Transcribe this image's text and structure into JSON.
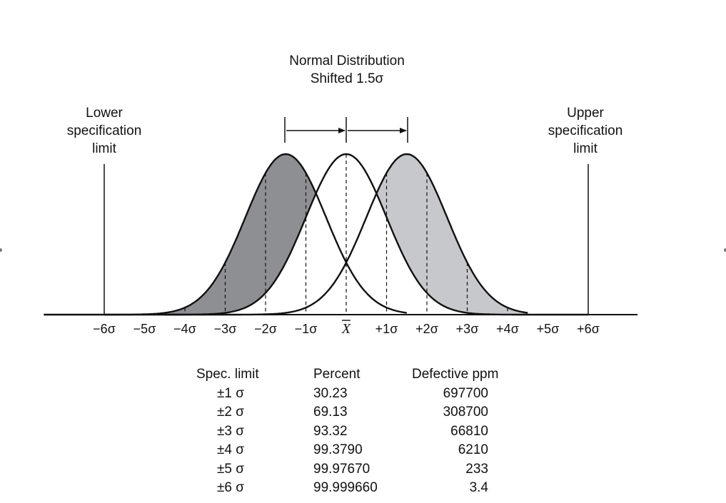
{
  "title_line1": "Normal Distribution",
  "title_line2": "Shifted 1.5σ",
  "lower_limit_lines": [
    "Lower",
    "specification",
    "limit"
  ],
  "upper_limit_lines": [
    "Upper",
    "specification",
    "limit"
  ],
  "axis_ticks": [
    "−6σ",
    "−5σ",
    "−4σ",
    "−3σ",
    "−2σ",
    "−1σ",
    "X",
    "+1σ",
    "+2σ",
    "+3σ",
    "+4σ",
    "+5σ",
    "+6σ"
  ],
  "colors": {
    "dark_fill": "#8e8f93",
    "light_fill": "#c7c8cb",
    "line": "#111111"
  },
  "table": {
    "headers": [
      "Spec. limit",
      "Percent",
      "Defective ppm"
    ],
    "rows": [
      [
        "±1 σ",
        "30.23",
        "697700"
      ],
      [
        "±2 σ",
        "69.13",
        "308700"
      ],
      [
        "±3 σ",
        "93.32",
        "66810"
      ],
      [
        "±4 σ",
        "99.3790",
        "6210"
      ],
      [
        "±5 σ",
        "99.97670",
        "233"
      ],
      [
        "±6 σ",
        "99.999660",
        "3.4"
      ]
    ]
  }
}
